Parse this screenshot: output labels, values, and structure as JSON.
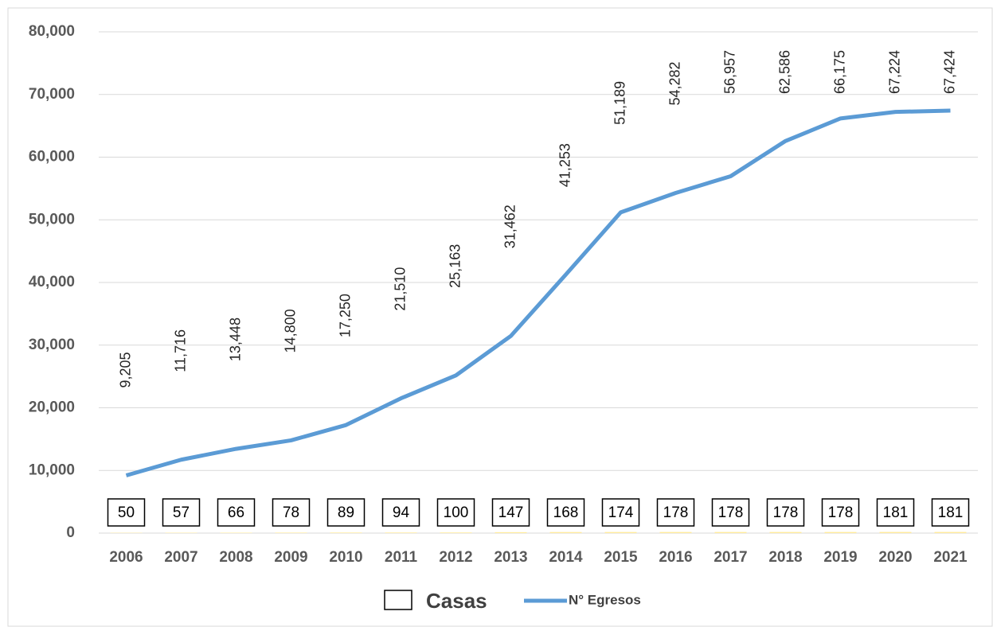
{
  "chart_data": {
    "type": "line",
    "categories": [
      "2006",
      "2007",
      "2008",
      "2009",
      "2010",
      "2011",
      "2012",
      "2013",
      "2014",
      "2015",
      "2016",
      "2017",
      "2018",
      "2019",
      "2020",
      "2021"
    ],
    "series": [
      {
        "name": "Casas",
        "type": "bar",
        "color": "#ffffff",
        "values": [
          50,
          57,
          66,
          78,
          89,
          94,
          100,
          147,
          168,
          174,
          178,
          178,
          178,
          178,
          181,
          181
        ]
      },
      {
        "name": "N° Egresos",
        "type": "line",
        "color": "#5b9bd5",
        "values": [
          9205,
          11716,
          13448,
          14800,
          17250,
          21510,
          25163,
          31462,
          41253,
          51189,
          54282,
          56957,
          62586,
          66175,
          67224,
          67424
        ],
        "value_labels": [
          "9,205",
          "11,716",
          "13,448",
          "14,800",
          "17,250",
          "21,510",
          "25,163",
          "31,462",
          "41,253",
          "51,189",
          "54,282",
          "56,957",
          "62,586",
          "66,175",
          "67,224",
          "67,424"
        ]
      }
    ],
    "ylim": [
      0,
      80000
    ],
    "yticks": [
      0,
      {
        "value": 10000,
        "label": "10,000"
      },
      {
        "value": 20000,
        "label": "20,000"
      },
      {
        "value": 30000,
        "label": "30,000"
      },
      {
        "value": 40000,
        "label": "40,000"
      },
      {
        "value": 50000,
        "label": "50,000"
      },
      {
        "value": 60000,
        "label": "60,000"
      },
      {
        "value": 70000,
        "label": "70,000"
      },
      {
        "value": 80000,
        "label": "80,000"
      }
    ],
    "grid": true
  }
}
